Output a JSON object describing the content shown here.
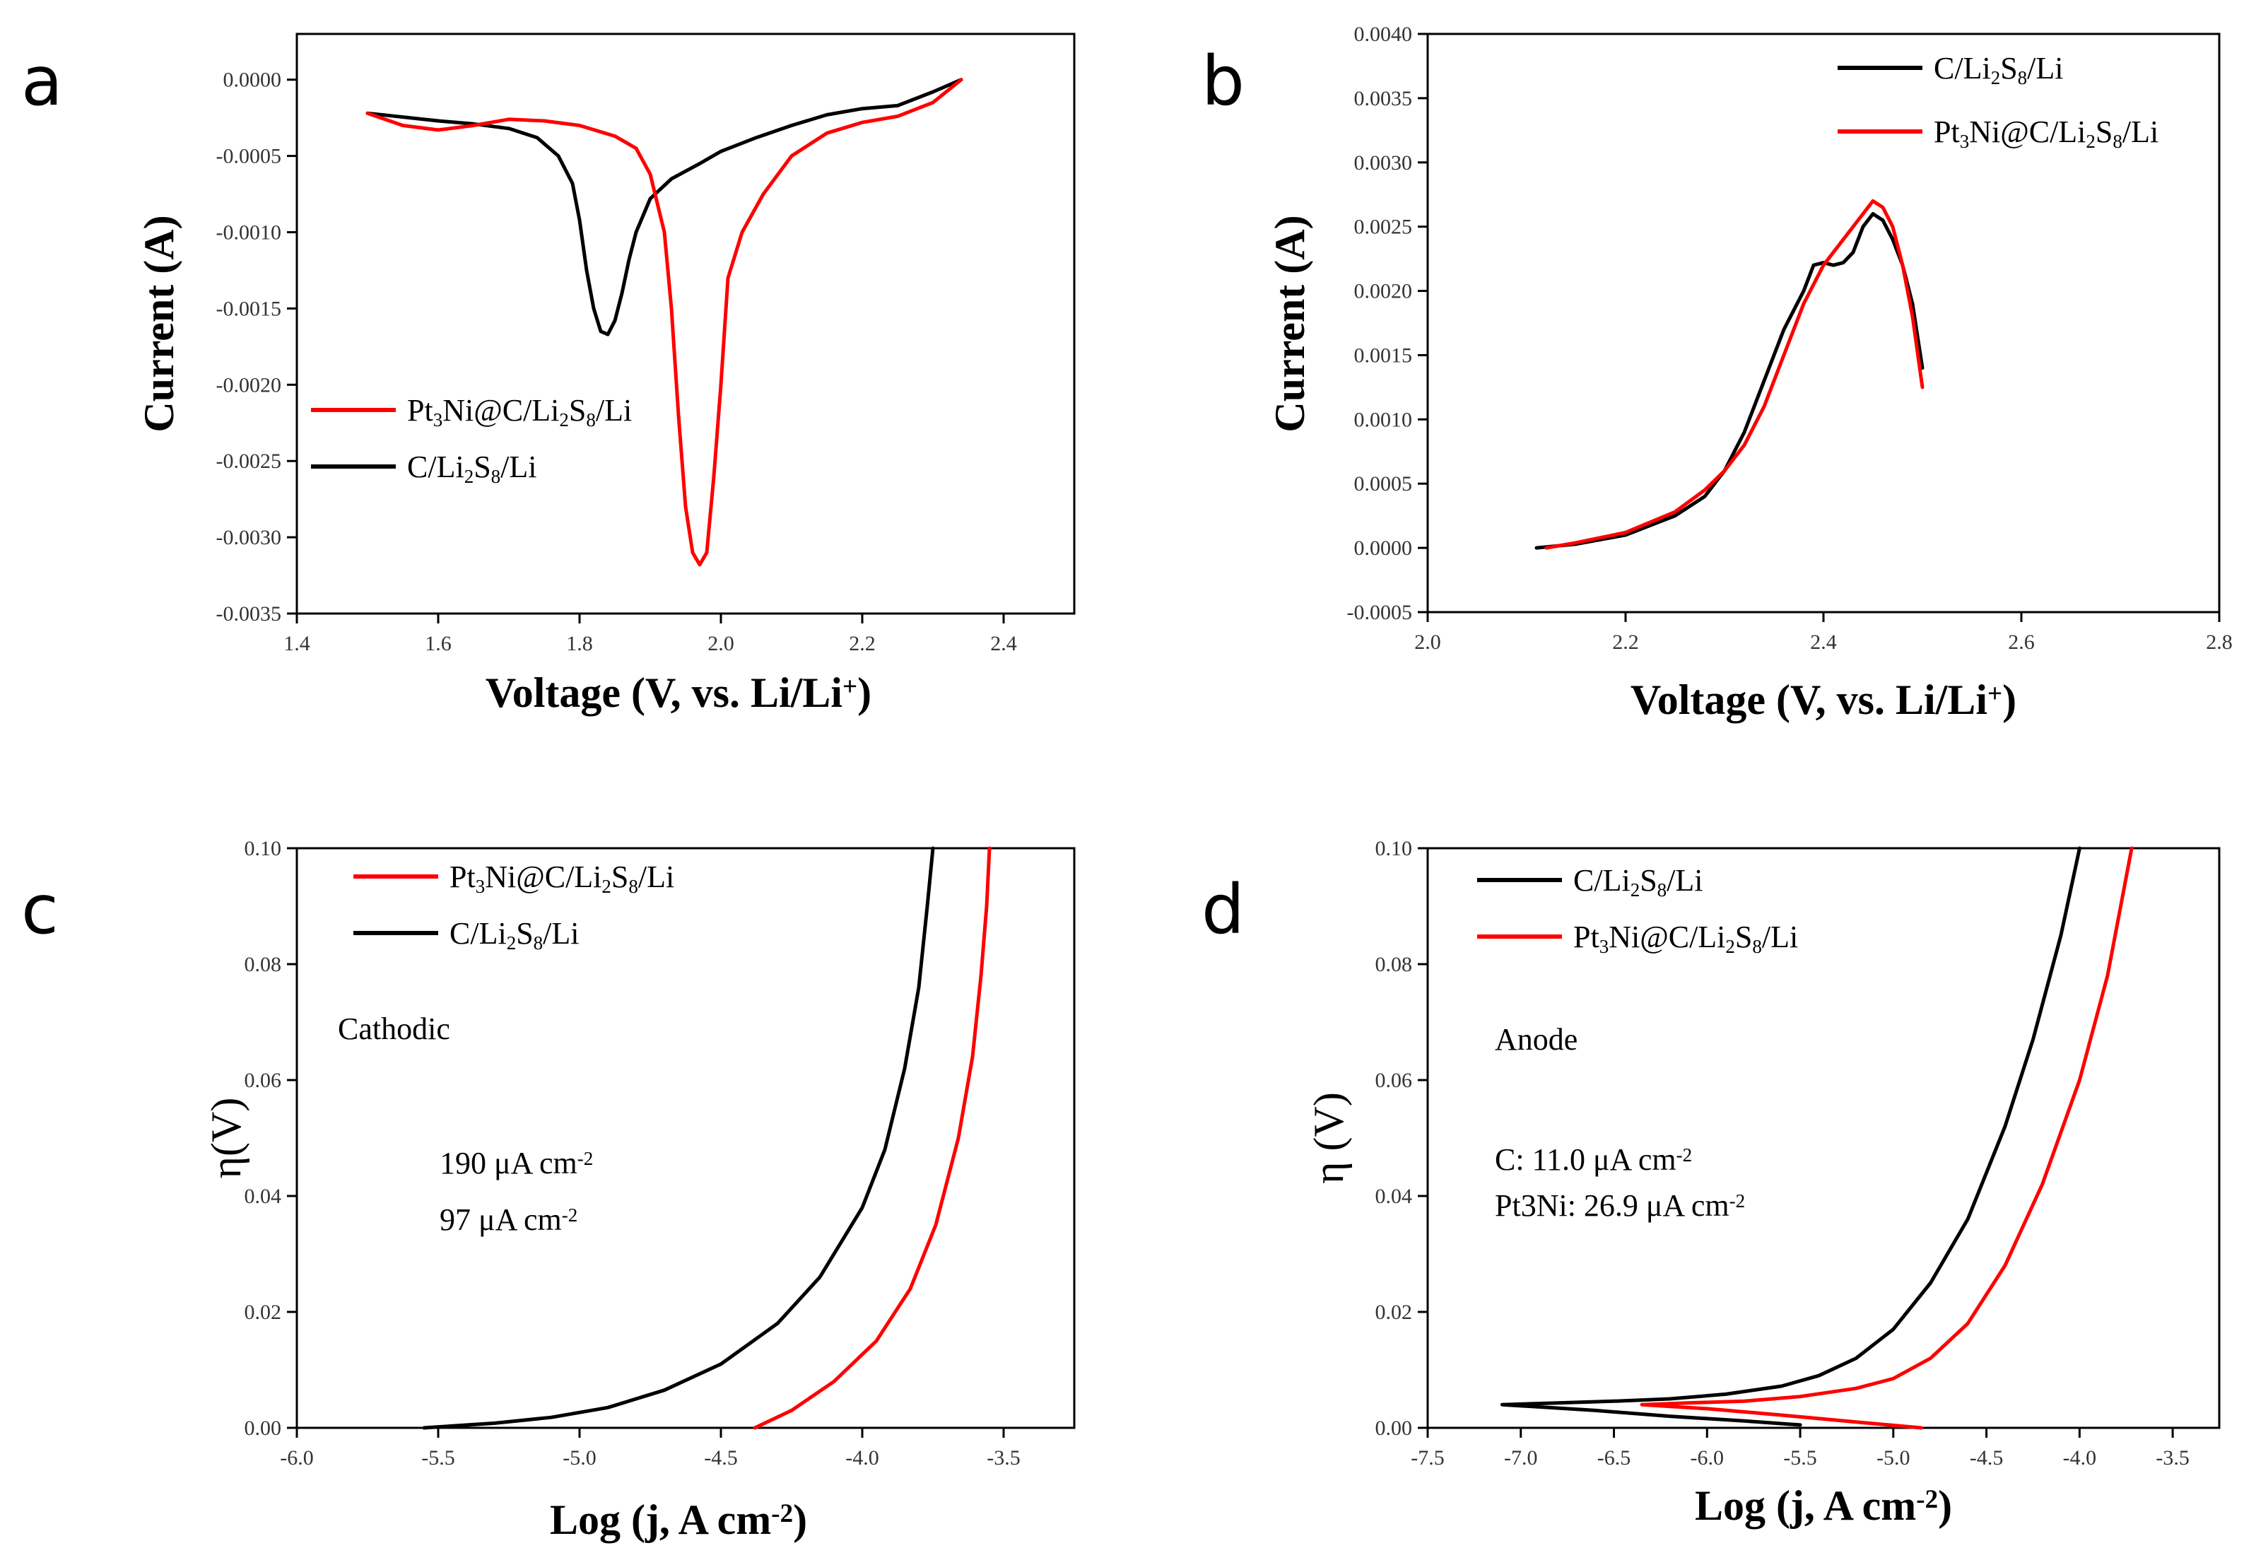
{
  "chart_data": [
    {
      "panel": "a",
      "type": "line",
      "xlabel": "Voltage (V, vs. Li/Li⁺)",
      "ylabel": "Current (A)",
      "xlim": [
        1.4,
        2.5
      ],
      "ylim": [
        -0.0035,
        0.0003
      ],
      "xticks": [
        1.4,
        1.6,
        1.8,
        2.0,
        2.2,
        2.4
      ],
      "xtick_labels": [
        "1.4",
        "1.6",
        "1.8",
        "2.0",
        "2.2",
        "2.4"
      ],
      "yticks": [
        0,
        -0.0005,
        -0.001,
        -0.0015,
        -0.002,
        -0.0025,
        -0.003,
        -0.0035
      ],
      "ytick_labels": [
        "0.0000",
        "-0.0005",
        "-0.0010",
        "-0.0015",
        "-0.0020",
        "-0.0025",
        "-0.0030",
        "-0.0035"
      ],
      "legend": [
        {
          "label": "Pt₃Ni@C/Li₂S₈/Li",
          "color": "#ff0000"
        },
        {
          "label": "C/Li₂S₈/Li",
          "color": "#000000"
        }
      ],
      "series": [
        {
          "name": "C/Li₂S₈/Li",
          "color": "#000000",
          "x": [
            1.5,
            1.6,
            1.65,
            1.7,
            1.74,
            1.77,
            1.79,
            1.8,
            1.81,
            1.82,
            1.83,
            1.84,
            1.85,
            1.86,
            1.87,
            1.88,
            1.9,
            1.93,
            1.97,
            2.0,
            2.05,
            2.1,
            2.15,
            2.2,
            2.25,
            2.3,
            2.34
          ],
          "y": [
            -0.00022,
            -0.00027,
            -0.00029,
            -0.00032,
            -0.00038,
            -0.0005,
            -0.00068,
            -0.00092,
            -0.00125,
            -0.0015,
            -0.00165,
            -0.00167,
            -0.00158,
            -0.0014,
            -0.00118,
            -0.001,
            -0.00078,
            -0.00065,
            -0.00055,
            -0.00047,
            -0.00038,
            -0.0003,
            -0.00023,
            -0.00019,
            -0.00017,
            -8e-05,
            0.0
          ]
        },
        {
          "name": "Pt₃Ni@C/Li₂S₈/Li",
          "color": "#ff0000",
          "x": [
            1.5,
            1.55,
            1.6,
            1.65,
            1.7,
            1.75,
            1.8,
            1.85,
            1.88,
            1.9,
            1.92,
            1.93,
            1.94,
            1.95,
            1.96,
            1.97,
            1.98,
            1.99,
            2.0,
            2.01,
            2.03,
            2.06,
            2.1,
            2.15,
            2.2,
            2.25,
            2.3,
            2.34
          ],
          "y": [
            -0.00022,
            -0.0003,
            -0.00033,
            -0.0003,
            -0.00026,
            -0.00027,
            -0.0003,
            -0.00037,
            -0.00045,
            -0.00062,
            -0.001,
            -0.0015,
            -0.0022,
            -0.0028,
            -0.0031,
            -0.00318,
            -0.0031,
            -0.0026,
            -0.002,
            -0.0013,
            -0.001,
            -0.00075,
            -0.0005,
            -0.00035,
            -0.00028,
            -0.00024,
            -0.00015,
            0.0
          ]
        }
      ]
    },
    {
      "panel": "b",
      "type": "line",
      "xlabel": "Voltage (V, vs. Li/Li⁺)",
      "ylabel": "Current (A)",
      "xlim": [
        2.0,
        2.8
      ],
      "ylim": [
        -0.0005,
        0.004
      ],
      "xticks": [
        2.0,
        2.2,
        2.4,
        2.6,
        2.8
      ],
      "xtick_labels": [
        "2.0",
        "2.2",
        "2.4",
        "2.6",
        "2.8"
      ],
      "yticks": [
        -0.0005,
        0,
        0.0005,
        0.001,
        0.0015,
        0.002,
        0.0025,
        0.003,
        0.0035,
        0.004
      ],
      "ytick_labels": [
        "-0.0005",
        "0.0000",
        "0.0005",
        "0.0010",
        "0.0015",
        "0.0020",
        "0.0025",
        "0.0030",
        "0.0035",
        "0.0040"
      ],
      "legend": [
        {
          "label": "C/Li₂S₈/Li",
          "color": "#000000"
        },
        {
          "label": "Pt₃Ni@C/Li₂S₈/Li",
          "color": "#ff0000"
        }
      ],
      "series": [
        {
          "name": "C/Li₂S₈/Li",
          "color": "#000000",
          "x": [
            2.11,
            2.15,
            2.2,
            2.25,
            2.28,
            2.3,
            2.32,
            2.34,
            2.36,
            2.38,
            2.39,
            2.4,
            2.41,
            2.42,
            2.43,
            2.44,
            2.45,
            2.46,
            2.47,
            2.48,
            2.49,
            2.5
          ],
          "y": [
            0.0,
            3e-05,
            0.0001,
            0.00025,
            0.0004,
            0.0006,
            0.0009,
            0.0013,
            0.0017,
            0.002,
            0.0022,
            0.00222,
            0.0022,
            0.00222,
            0.0023,
            0.0025,
            0.0026,
            0.00255,
            0.0024,
            0.0022,
            0.0019,
            0.0014
          ]
        },
        {
          "name": "Pt₃Ni@C/Li₂S₈/Li",
          "color": "#ff0000",
          "x": [
            2.12,
            2.15,
            2.2,
            2.25,
            2.28,
            2.3,
            2.32,
            2.34,
            2.36,
            2.38,
            2.4,
            2.42,
            2.44,
            2.45,
            2.46,
            2.47,
            2.48,
            2.49,
            2.5
          ],
          "y": [
            0.0,
            4e-05,
            0.00012,
            0.00028,
            0.00045,
            0.0006,
            0.0008,
            0.0011,
            0.0015,
            0.0019,
            0.0022,
            0.0024,
            0.0026,
            0.0027,
            0.00265,
            0.0025,
            0.0022,
            0.0018,
            0.00125
          ]
        }
      ]
    },
    {
      "panel": "c",
      "type": "line",
      "xlabel": "Log (j, A cm⁻²)",
      "ylabel": "η(V)",
      "xlim": [
        -6.0,
        -3.25
      ],
      "ylim": [
        0,
        0.1
      ],
      "xticks": [
        -6.0,
        -5.5,
        -5.0,
        -4.5,
        -4.0,
        -3.5
      ],
      "xtick_labels": [
        "-6.0",
        "-5.5",
        "-5.0",
        "-4.5",
        "-4.0",
        "-3.5"
      ],
      "yticks": [
        0,
        0.02,
        0.04,
        0.06,
        0.08,
        0.1
      ],
      "ytick_labels": [
        "0.00",
        "0.02",
        "0.04",
        "0.06",
        "0.08",
        "0.10"
      ],
      "legend": [
        {
          "label": "Pt₃Ni@C/Li₂S₈/Li",
          "color": "#ff0000"
        },
        {
          "label": "C/Li₂S₈/Li",
          "color": "#000000"
        }
      ],
      "annotations": [
        "Cathodic",
        "190 μA cm⁻²",
        "97 μA cm⁻²"
      ],
      "series": [
        {
          "name": "C/Li₂S₈/Li",
          "color": "#000000",
          "x": [
            -5.55,
            -5.3,
            -5.1,
            -4.9,
            -4.7,
            -4.5,
            -4.3,
            -4.15,
            -4.0,
            -3.92,
            -3.85,
            -3.8,
            -3.77,
            -3.75
          ],
          "y": [
            0.0,
            0.0008,
            0.0018,
            0.0035,
            0.0065,
            0.011,
            0.018,
            0.026,
            0.038,
            0.048,
            0.062,
            0.076,
            0.09,
            0.1
          ]
        },
        {
          "name": "Pt₃Ni@C/Li₂S₈/Li",
          "color": "#ff0000",
          "x": [
            -4.38,
            -4.25,
            -4.1,
            -3.95,
            -3.83,
            -3.74,
            -3.66,
            -3.61,
            -3.58,
            -3.56,
            -3.55
          ],
          "y": [
            0.0,
            0.003,
            0.008,
            0.015,
            0.024,
            0.035,
            0.05,
            0.064,
            0.078,
            0.09,
            0.1
          ]
        }
      ]
    },
    {
      "panel": "d",
      "type": "line",
      "xlabel": "Log (j, A cm⁻²)",
      "ylabel": "η (V)",
      "xlim": [
        -7.5,
        -3.25
      ],
      "ylim": [
        0,
        0.1
      ],
      "xticks": [
        -7.5,
        -7.0,
        -6.5,
        -6.0,
        -5.5,
        -5.0,
        -4.5,
        -4.0,
        -3.5
      ],
      "xtick_labels": [
        "-7.5",
        "-7.0",
        "-6.5",
        "-6.0",
        "-5.5",
        "-5.0",
        "-4.5",
        "-4.0",
        "-3.5"
      ],
      "yticks": [
        0,
        0.02,
        0.04,
        0.06,
        0.08,
        0.1
      ],
      "ytick_labels": [
        "0.00",
        "0.02",
        "0.04",
        "0.06",
        "0.08",
        "0.10"
      ],
      "legend": [
        {
          "label": "C/Li₂S₈/Li",
          "color": "#000000"
        },
        {
          "label": "Pt₃Ni@C/Li₂S₈/Li",
          "color": "#ff0000"
        }
      ],
      "annotations": [
        "Anode",
        "C: 11.0 μA cm⁻²",
        "Pt3Ni: 26.9 μA cm⁻²"
      ],
      "series": [
        {
          "name": "C/Li₂S₈/Li",
          "color": "#000000",
          "x": [
            -5.5,
            -5.8,
            -6.2,
            -6.6,
            -7.1,
            -6.8,
            -6.5,
            -6.2,
            -5.9,
            -5.6,
            -5.4,
            -5.2,
            -5.0,
            -4.8,
            -4.6,
            -4.4,
            -4.25,
            -4.1,
            -4.0
          ],
          "y": [
            0.0005,
            0.0012,
            0.002,
            0.003,
            0.004,
            0.0043,
            0.0046,
            0.005,
            0.0058,
            0.0072,
            0.009,
            0.012,
            0.017,
            0.025,
            0.036,
            0.052,
            0.067,
            0.085,
            0.1
          ]
        },
        {
          "name": "Pt₃Ni@C/Li₂S₈/Li",
          "color": "#ff0000",
          "x": [
            -4.85,
            -5.2,
            -5.6,
            -6.0,
            -6.35,
            -6.1,
            -5.8,
            -5.5,
            -5.2,
            -5.0,
            -4.8,
            -4.6,
            -4.4,
            -4.2,
            -4.0,
            -3.85,
            -3.72
          ],
          "y": [
            0.0,
            0.001,
            0.0022,
            0.0033,
            0.004,
            0.0043,
            0.0046,
            0.0054,
            0.0068,
            0.0085,
            0.012,
            0.018,
            0.028,
            0.042,
            0.06,
            0.078,
            0.1
          ]
        }
      ]
    }
  ]
}
